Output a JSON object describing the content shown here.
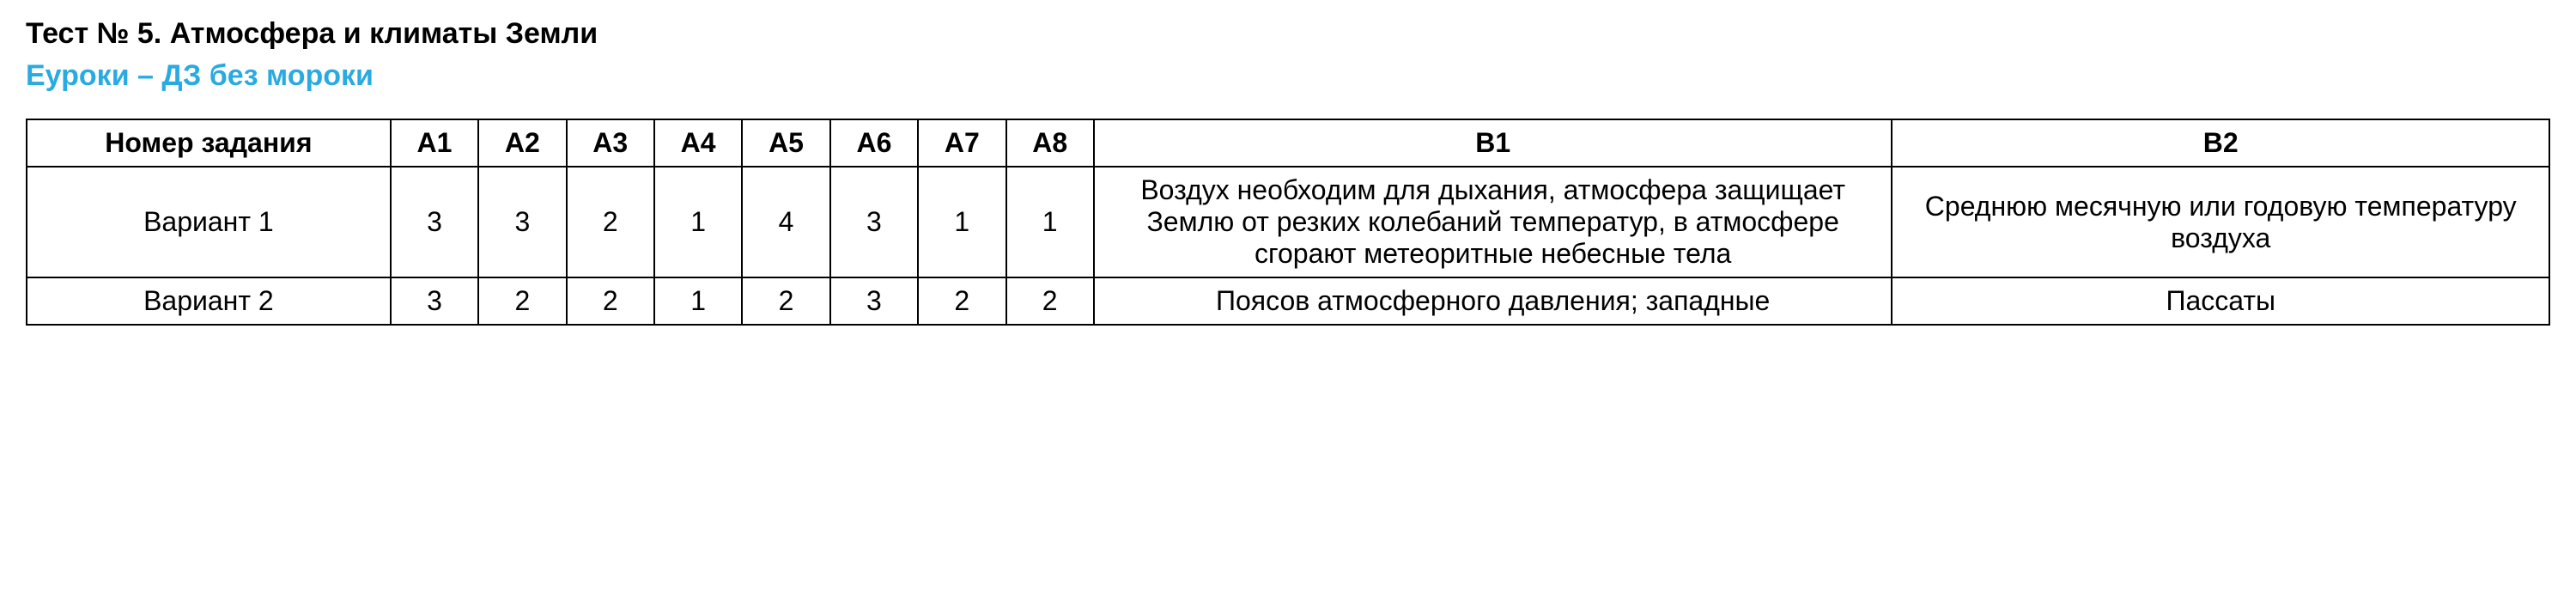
{
  "title": "Тест № 5. Атмосфера и климаты Земли",
  "subtitle": "Еуроки – ДЗ без мороки",
  "table": {
    "columns": [
      "Номер задания",
      "А1",
      "А2",
      "А3",
      "А4",
      "А5",
      "А6",
      "А7",
      "А8",
      "В1",
      "В2"
    ],
    "rows": [
      {
        "label": "Вариант 1",
        "a": [
          "3",
          "3",
          "2",
          "1",
          "4",
          "3",
          "1",
          "1"
        ],
        "b1": "Воздух необходим для дыхания, атмосфера защищает Землю от резких колебаний температур, в атмосфере сгорают метеоритные небесные тела",
        "b2": "Среднюю месячную или годовую температуру воздуха"
      },
      {
        "label": "Вариант 2",
        "a": [
          "3",
          "2",
          "2",
          "1",
          "2",
          "3",
          "2",
          "2"
        ],
        "b1": "Поясов атмосферного давления; западные",
        "b2": "Пассаты"
      }
    ]
  },
  "colors": {
    "title": "#000000",
    "subtitle": "#29abe2",
    "text": "#000000",
    "border": "#000000",
    "background": "#ffffff"
  },
  "typography": {
    "font_family": "Arial",
    "title_fontsize": 34,
    "subtitle_fontsize": 34,
    "table_fontsize": 32,
    "title_weight": "bold",
    "subtitle_weight": "bold",
    "header_weight": "bold"
  }
}
